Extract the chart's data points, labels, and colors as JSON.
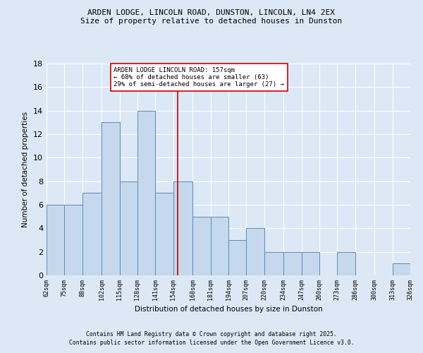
{
  "title1": "ARDEN LODGE, LINCOLN ROAD, DUNSTON, LINCOLN, LN4 2EX",
  "title2": "Size of property relative to detached houses in Dunston",
  "xlabel": "Distribution of detached houses by size in Dunston",
  "ylabel": "Number of detached properties",
  "bin_edges": [
    62,
    75,
    88,
    102,
    115,
    128,
    141,
    154,
    168,
    181,
    194,
    207,
    220,
    234,
    247,
    260,
    273,
    286,
    300,
    313,
    326
  ],
  "bar_heights": [
    6,
    6,
    7,
    13,
    8,
    14,
    7,
    8,
    5,
    5,
    3,
    4,
    2,
    2,
    2,
    0,
    2,
    0,
    0,
    1
  ],
  "bar_color": "#c5d8ec",
  "bar_edge_color": "#5b8db8",
  "bg_color": "#dce8f5",
  "vline_x": 157,
  "vline_color": "#cc0000",
  "annotation_text": "ARDEN LODGE LINCOLN ROAD: 157sqm\n← 68% of detached houses are smaller (63)\n29% of semi-detached houses are larger (27) →",
  "annotation_box_color": "#ffffff",
  "annotation_box_edge": "#cc0000",
  "ylim": [
    0,
    18
  ],
  "yticks": [
    0,
    2,
    4,
    6,
    8,
    10,
    12,
    14,
    16,
    18
  ],
  "tick_labels": [
    "62sqm",
    "75sqm",
    "88sqm",
    "102sqm",
    "115sqm",
    "128sqm",
    "141sqm",
    "154sqm",
    "168sqm",
    "181sqm",
    "194sqm",
    "207sqm",
    "220sqm",
    "234sqm",
    "247sqm",
    "260sqm",
    "273sqm",
    "286sqm",
    "300sqm",
    "313sqm",
    "326sqm"
  ],
  "footer1": "Contains HM Land Registry data © Crown copyright and database right 2025.",
  "footer2": "Contains public sector information licensed under the Open Government Licence v3.0.",
  "grid_color": "#ffffff"
}
